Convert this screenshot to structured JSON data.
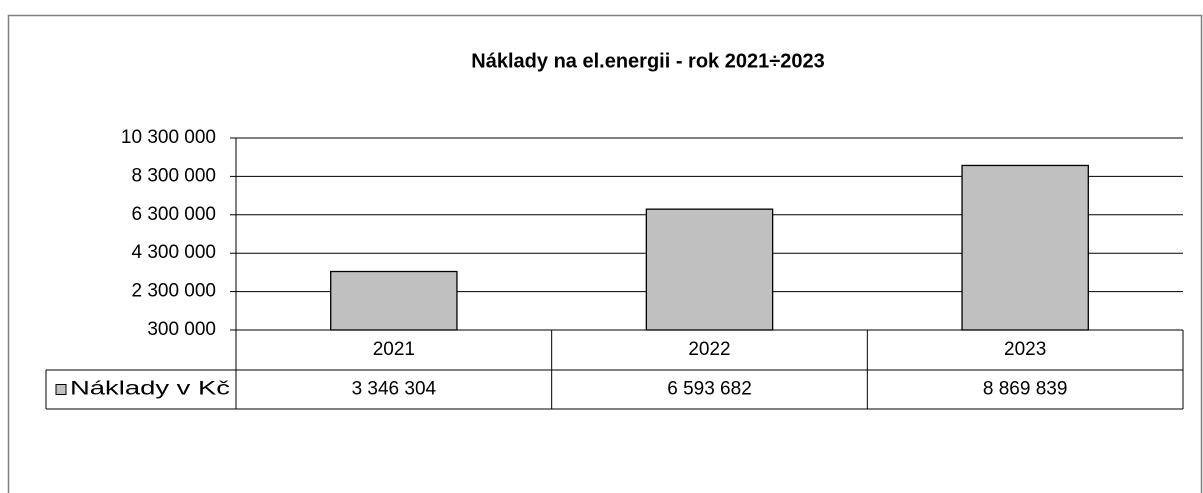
{
  "chart_data": {
    "type": "bar",
    "title": "Náklady na el.energii - rok 2021÷2023",
    "categories": [
      "2021",
      "2022",
      "2023"
    ],
    "series": [
      {
        "name": "Náklady v Kč",
        "color": "#c0c0c0",
        "values": [
          3346304,
          6593682,
          8869839
        ],
        "value_labels": [
          "3 346 304",
          "6 593 682",
          "8 869 839"
        ]
      }
    ],
    "ylim": [
      300000,
      10300000
    ],
    "yticks": [
      {
        "value": 300000,
        "label": "300 000"
      },
      {
        "value": 2300000,
        "label": "2 300 000"
      },
      {
        "value": 4300000,
        "label": "4 300 000"
      },
      {
        "value": 6300000,
        "label": "6 300 000"
      },
      {
        "value": 8300000,
        "label": "8 300 000"
      },
      {
        "value": 10300000,
        "label": "10 300 000"
      }
    ],
    "grid": true
  }
}
